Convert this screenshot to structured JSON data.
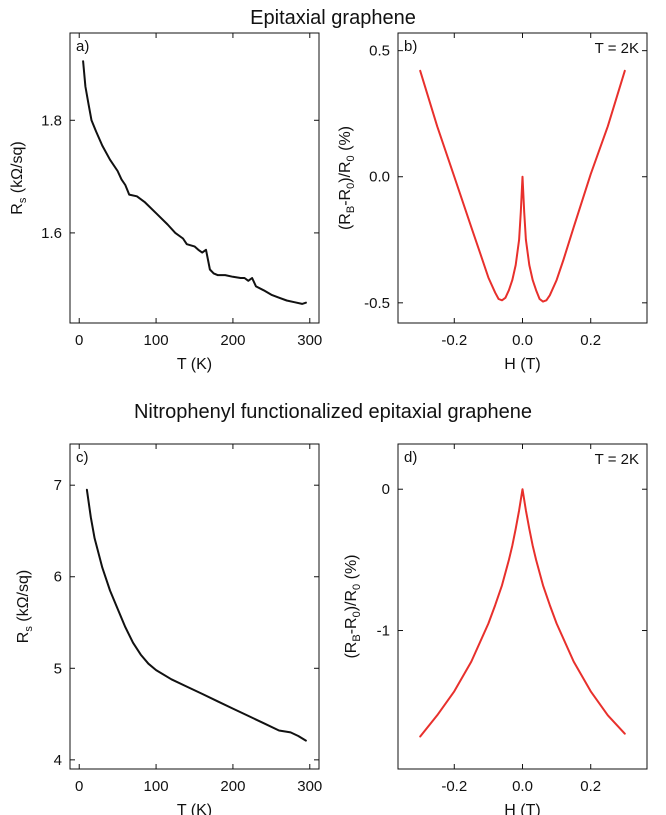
{
  "section_titles": {
    "top": "Epitaxial graphene",
    "bottom": "Nitrophenyl functionalized epitaxial graphene"
  },
  "chart_data": [
    {
      "panel": "a)",
      "type": "line",
      "note": "",
      "xlabel": "T (K)",
      "ylabel": {
        "main": "R",
        "sub": "s",
        "rest": " (kΩ/sq)"
      },
      "xlim": [
        -12,
        312
      ],
      "ylim": [
        1.44,
        1.955
      ],
      "xticks": [
        0,
        100,
        200,
        300
      ],
      "xtick_labels": [
        "0",
        "100",
        "200",
        "300"
      ],
      "yticks": [
        1.6,
        1.8
      ],
      "ytick_labels": [
        "1.6",
        "1.8"
      ],
      "grid": false,
      "series": [
        {
          "color": "#111111",
          "x": [
            5,
            8,
            12,
            16,
            22,
            30,
            40,
            50,
            55,
            60,
            65,
            75,
            85,
            100,
            115,
            125,
            135,
            140,
            150,
            155,
            160,
            165,
            170,
            175,
            180,
            190,
            200,
            210,
            215,
            220,
            225,
            230,
            240,
            250,
            260,
            270,
            280,
            290,
            295
          ],
          "y": [
            1.905,
            1.86,
            1.83,
            1.8,
            1.78,
            1.755,
            1.73,
            1.71,
            1.695,
            1.685,
            1.668,
            1.665,
            1.655,
            1.635,
            1.615,
            1.6,
            1.59,
            1.58,
            1.576,
            1.57,
            1.565,
            1.57,
            1.535,
            1.528,
            1.525,
            1.525,
            1.522,
            1.52,
            1.52,
            1.515,
            1.52,
            1.505,
            1.498,
            1.49,
            1.485,
            1.48,
            1.477,
            1.474,
            1.476
          ]
        }
      ]
    },
    {
      "panel": "b)",
      "type": "line",
      "note": "T = 2K",
      "xlabel": "H (T)",
      "ylabel": {
        "main": "(R",
        "sub": "B",
        "rest": "-R",
        "sub2": "0",
        "rest2": ")/R",
        "sub3": "0",
        "rest3": " (%)"
      },
      "xlim": [
        -0.365,
        0.365
      ],
      "ylim": [
        -0.58,
        0.57
      ],
      "xticks": [
        -0.2,
        0.0,
        0.2
      ],
      "xtick_labels": [
        "-0.2",
        "0.0",
        "0.2"
      ],
      "yticks": [
        -0.5,
        0.0,
        0.5
      ],
      "ytick_labels": [
        "-0.5",
        "0.0",
        "0.5"
      ],
      "grid": false,
      "series": [
        {
          "color": "#e8302c",
          "x": [
            -0.3,
            -0.25,
            -0.2,
            -0.15,
            -0.12,
            -0.1,
            -0.08,
            -0.07,
            -0.06,
            -0.05,
            -0.04,
            -0.03,
            -0.02,
            -0.01,
            -0.005,
            0,
            0.005,
            0.01,
            0.02,
            0.03,
            0.04,
            0.05,
            0.06,
            0.07,
            0.08,
            0.1,
            0.12,
            0.15,
            0.2,
            0.25,
            0.3
          ],
          "y": [
            0.42,
            0.2,
            0.0,
            -0.2,
            -0.32,
            -0.4,
            -0.46,
            -0.485,
            -0.49,
            -0.48,
            -0.45,
            -0.41,
            -0.35,
            -0.25,
            -0.14,
            0.0,
            -0.14,
            -0.25,
            -0.35,
            -0.41,
            -0.45,
            -0.485,
            -0.495,
            -0.49,
            -0.47,
            -0.41,
            -0.33,
            -0.2,
            0.01,
            0.2,
            0.42
          ]
        }
      ]
    },
    {
      "panel": "c)",
      "type": "line",
      "note": "",
      "xlabel": "T (K)",
      "ylabel": {
        "main": "R",
        "sub": "s",
        "rest": " (kΩ/sq)"
      },
      "xlim": [
        -12,
        312
      ],
      "ylim": [
        3.9,
        7.45
      ],
      "xticks": [
        0,
        100,
        200,
        300
      ],
      "xtick_labels": [
        "0",
        "100",
        "200",
        "300"
      ],
      "yticks": [
        4,
        5,
        6,
        7
      ],
      "ytick_labels": [
        "4",
        "5",
        "6",
        "7"
      ],
      "grid": false,
      "series": [
        {
          "color": "#111111",
          "x": [
            10,
            15,
            20,
            30,
            40,
            50,
            60,
            70,
            80,
            90,
            100,
            120,
            140,
            160,
            180,
            200,
            220,
            240,
            260,
            275,
            285,
            295
          ],
          "y": [
            6.95,
            6.65,
            6.42,
            6.1,
            5.85,
            5.65,
            5.45,
            5.28,
            5.15,
            5.05,
            4.98,
            4.88,
            4.8,
            4.72,
            4.64,
            4.56,
            4.48,
            4.4,
            4.32,
            4.3,
            4.26,
            4.21
          ]
        }
      ]
    },
    {
      "panel": "d)",
      "type": "line",
      "note": "T = 2K",
      "xlabel": "H (T)",
      "ylabel": {
        "main": "(R",
        "sub": "B",
        "rest": "-R",
        "sub2": "0",
        "rest2": ")/R",
        "sub3": "0",
        "rest3": " (%)"
      },
      "xlim": [
        -0.365,
        0.365
      ],
      "ylim": [
        -1.98,
        0.32
      ],
      "xticks": [
        -0.2,
        0.0,
        0.2
      ],
      "xtick_labels": [
        "-0.2",
        "0.0",
        "0.2"
      ],
      "yticks": [
        -1,
        0
      ],
      "ytick_labels": [
        "-1",
        "0"
      ],
      "grid": false,
      "series": [
        {
          "color": "#e8302c",
          "x": [
            -0.3,
            -0.25,
            -0.2,
            -0.15,
            -0.1,
            -0.08,
            -0.06,
            -0.04,
            -0.03,
            -0.02,
            -0.01,
            0,
            0.01,
            0.02,
            0.03,
            0.04,
            0.06,
            0.08,
            0.1,
            0.15,
            0.2,
            0.25,
            0.3
          ],
          "y": [
            -1.75,
            -1.6,
            -1.43,
            -1.22,
            -0.95,
            -0.82,
            -0.68,
            -0.5,
            -0.4,
            -0.28,
            -0.15,
            0.0,
            -0.15,
            -0.28,
            -0.4,
            -0.5,
            -0.68,
            -0.82,
            -0.95,
            -1.22,
            -1.43,
            -1.6,
            -1.73
          ]
        }
      ]
    }
  ]
}
